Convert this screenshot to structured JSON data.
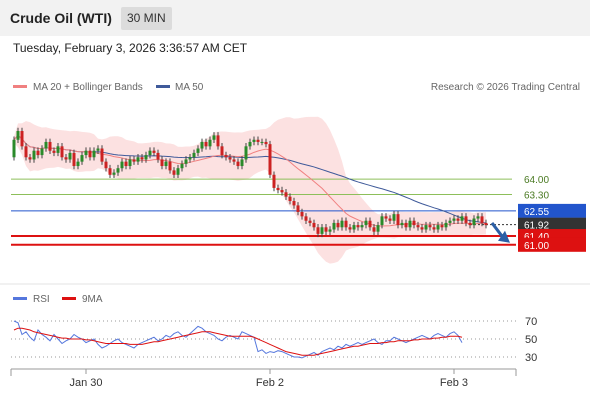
{
  "header": {
    "title": "Crude Oil (WTI)",
    "timeframe": "30 MIN",
    "datetime": "Tuesday, February 3, 2026 3:36:57 AM CET"
  },
  "legend": {
    "ma20_label": "MA 20 + Bollinger Bands",
    "ma50_label": "MA 50",
    "credit": "Research © 2026 Trading Central",
    "rsi_label": "RSI",
    "rsi_ma_label": "9MA"
  },
  "colors": {
    "ma20": "#f08080",
    "bollinger_fill": "#fbdcdc",
    "ma50": "#3f5a9a",
    "resistance": "#8dbf5a",
    "pivot": "#2255cc",
    "support": "#dd1111",
    "last_price": "#333333",
    "candle_up": "#2a8a2a",
    "candle_down": "#cc2222",
    "rsi": "#5577dd",
    "rsi_ma": "#dd1111",
    "arrow": "#2b5fa6"
  },
  "chart_data": [
    {
      "type": "candlestick",
      "title": "",
      "ylim": [
        59.3,
        67.8
      ],
      "x_ticks": [
        {
          "label": "Jan 30",
          "index": 18
        },
        {
          "label": "Feb 2",
          "index": 64
        },
        {
          "label": "Feb 3",
          "index": 110
        }
      ],
      "levels": [
        {
          "label": "64.00",
          "value": 64.0,
          "role": "resistance"
        },
        {
          "label": "63.30",
          "value": 63.3,
          "role": "resistance"
        },
        {
          "label": "62.55",
          "value": 62.55,
          "role": "pivot"
        },
        {
          "label": "61.92",
          "value": 61.92,
          "role": "last_price"
        },
        {
          "label": "61.40",
          "value": 61.4,
          "role": "support"
        },
        {
          "label": "61.00",
          "value": 61.0,
          "role": "support"
        }
      ],
      "close": [
        65.8,
        66.2,
        65.5,
        65.0,
        64.9,
        65.3,
        65.1,
        65.4,
        65.7,
        65.3,
        65.2,
        65.5,
        65.0,
        64.9,
        65.2,
        64.6,
        64.8,
        65.1,
        65.3,
        65.0,
        65.3,
        65.4,
        64.8,
        64.5,
        64.2,
        64.3,
        64.5,
        64.8,
        64.6,
        64.9,
        64.8,
        65.0,
        64.9,
        65.1,
        65.3,
        65.2,
        64.9,
        64.6,
        64.8,
        64.4,
        64.2,
        64.5,
        64.7,
        64.9,
        65.0,
        65.2,
        65.4,
        65.7,
        65.5,
        65.8,
        66.0,
        65.5,
        65.1,
        65.0,
        64.9,
        64.8,
        64.6,
        64.9,
        65.5,
        65.7,
        65.8,
        65.7,
        65.7,
        65.6,
        64.2,
        63.6,
        63.5,
        63.4,
        63.2,
        63.0,
        62.8,
        62.5,
        62.3,
        62.1,
        62.0,
        61.8,
        61.5,
        61.8,
        61.6,
        61.7,
        62.0,
        61.8,
        62.1,
        61.8,
        61.7,
        61.9,
        61.8,
        61.9,
        62.1,
        61.8,
        61.6,
        61.9,
        62.3,
        62.2,
        62.1,
        62.4,
        61.9,
        62.0,
        61.8,
        62.1,
        61.9,
        61.8,
        61.7,
        61.9,
        61.8,
        61.7,
        61.9,
        61.8,
        62.0,
        62.1,
        62.2,
        62.1,
        62.3,
        62.0,
        61.9,
        62.2,
        62.3,
        62.0,
        61.9
      ],
      "open": [
        65.0,
        65.8,
        66.2,
        65.5,
        65.0,
        64.9,
        65.3,
        65.1,
        65.4,
        65.7,
        65.3,
        65.2,
        65.5,
        65.0,
        64.9,
        65.2,
        64.6,
        64.8,
        65.1,
        65.3,
        65.0,
        65.3,
        65.4,
        64.8,
        64.5,
        64.2,
        64.3,
        64.5,
        64.8,
        64.6,
        64.9,
        64.8,
        65.0,
        64.9,
        65.1,
        65.3,
        65.2,
        64.9,
        64.6,
        64.8,
        64.4,
        64.2,
        64.5,
        64.7,
        64.9,
        65.0,
        65.2,
        65.4,
        65.7,
        65.5,
        65.8,
        66.0,
        65.5,
        65.1,
        65.0,
        64.9,
        64.8,
        64.6,
        64.9,
        65.5,
        65.7,
        65.8,
        65.7,
        65.7,
        65.6,
        64.2,
        63.6,
        63.5,
        63.4,
        63.2,
        63.0,
        62.8,
        62.5,
        62.3,
        62.1,
        62.0,
        61.8,
        61.5,
        61.8,
        61.6,
        61.7,
        62.0,
        61.8,
        62.1,
        61.8,
        61.7,
        61.9,
        61.8,
        61.9,
        62.1,
        61.8,
        61.6,
        61.9,
        62.3,
        62.2,
        62.1,
        62.4,
        61.9,
        62.0,
        61.8,
        62.1,
        61.9,
        61.8,
        61.7,
        61.9,
        61.8,
        61.7,
        61.9,
        61.8,
        62.0,
        62.1,
        62.2,
        62.1,
        62.3,
        62.0,
        61.9,
        62.2,
        62.3,
        62.0
      ]
    },
    {
      "type": "line",
      "title": "",
      "ylim": [
        20,
        80
      ],
      "y_ticks": [
        70,
        50,
        30
      ],
      "rsi": [
        70,
        68,
        55,
        58,
        52,
        48,
        60,
        55,
        52,
        48,
        55,
        50,
        45,
        48,
        50,
        55,
        52,
        50,
        46,
        48,
        50,
        44,
        40,
        42,
        45,
        48,
        50,
        46,
        44,
        42,
        40,
        44,
        46,
        48,
        50,
        52,
        48,
        50,
        54,
        52,
        56,
        58,
        54,
        52,
        56,
        60,
        64,
        62,
        58,
        56,
        54,
        50,
        48,
        52,
        54,
        52,
        50,
        58,
        56,
        54,
        52,
        36,
        38,
        34,
        36,
        35,
        37,
        36,
        34,
        32,
        30,
        30,
        29,
        31,
        33,
        35,
        32,
        36,
        38,
        40,
        38,
        42,
        40,
        44,
        42,
        44,
        46,
        44,
        46,
        48,
        50,
        46,
        44,
        48,
        48,
        52,
        50,
        48,
        46,
        48,
        50,
        52,
        54,
        52,
        50,
        54,
        56,
        54,
        52,
        56,
        58,
        54,
        46
      ],
      "rsi_ma": [
        60,
        62,
        62,
        61,
        60,
        58,
        57,
        56,
        55,
        54,
        53,
        52,
        51,
        51,
        50,
        50,
        50,
        50,
        49,
        49,
        48,
        47,
        46,
        45,
        45,
        45,
        45,
        45,
        45,
        44,
        44,
        44,
        44,
        45,
        46,
        47,
        47,
        48,
        49,
        50,
        51,
        52,
        53,
        54,
        55,
        56,
        57,
        58,
        58,
        58,
        57,
        56,
        55,
        54,
        53,
        53,
        53,
        53,
        53,
        53,
        52,
        50,
        48,
        46,
        44,
        42,
        40,
        38,
        36,
        35,
        34,
        33,
        32,
        32,
        32,
        32,
        33,
        34,
        35,
        36,
        37,
        38,
        39,
        40,
        41,
        42,
        42,
        43,
        44,
        45,
        45,
        45,
        46,
        46,
        47,
        47,
        48,
        48,
        48,
        48,
        49,
        49,
        50,
        50,
        50,
        51,
        51,
        52,
        52,
        53,
        53,
        53,
        52
      ]
    }
  ]
}
